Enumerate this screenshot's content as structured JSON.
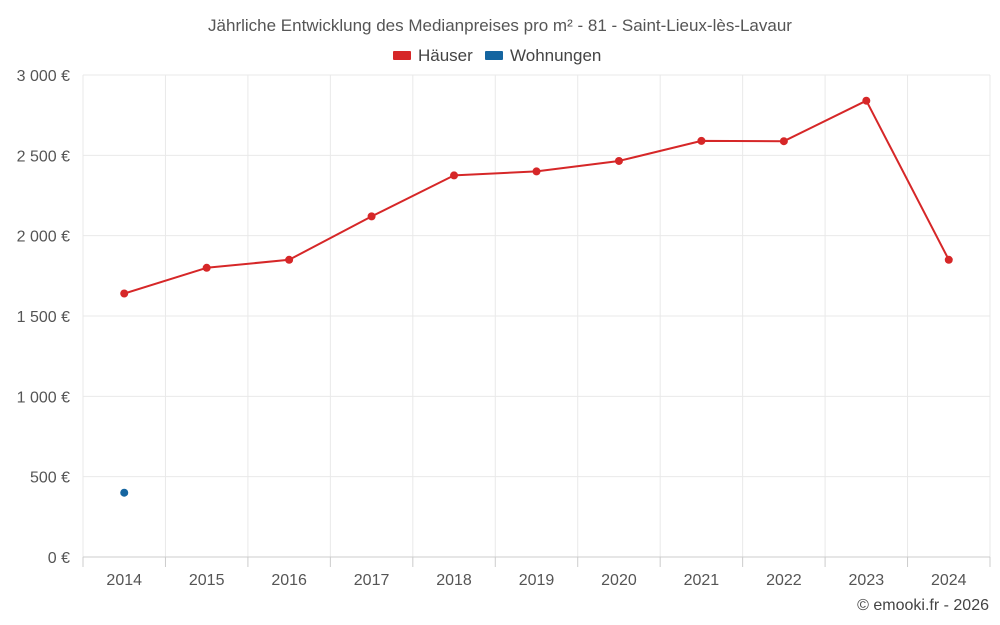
{
  "chart_data": {
    "type": "line",
    "title": "Jährliche Entwicklung des Medianpreises pro m² - 81 - Saint-Lieux-lès-Lavaur",
    "categories": [
      "2014",
      "2015",
      "2016",
      "2017",
      "2018",
      "2019",
      "2020",
      "2021",
      "2022",
      "2023",
      "2024"
    ],
    "series": [
      {
        "name": "Häuser",
        "color": "#d62728",
        "values": [
          1640,
          1800,
          1850,
          2120,
          2375,
          2400,
          2465,
          2590,
          2588,
          2840,
          1850
        ]
      },
      {
        "name": "Wohnungen",
        "color": "#1565a0",
        "values": [
          400,
          null,
          null,
          null,
          null,
          null,
          null,
          null,
          null,
          null,
          null
        ]
      }
    ],
    "ylim": [
      0,
      3000
    ],
    "yticks": [
      0,
      500,
      1000,
      1500,
      2000,
      2500,
      3000
    ],
    "ytick_labels": [
      "0 €",
      "500 €",
      "1 000 €",
      "1 500 €",
      "2 000 €",
      "2 500 €",
      "3 000 €"
    ],
    "xlabel": "",
    "ylabel": "",
    "grid": true,
    "legend_position": "top-center"
  },
  "credit": "© emooki.fr - 2026"
}
